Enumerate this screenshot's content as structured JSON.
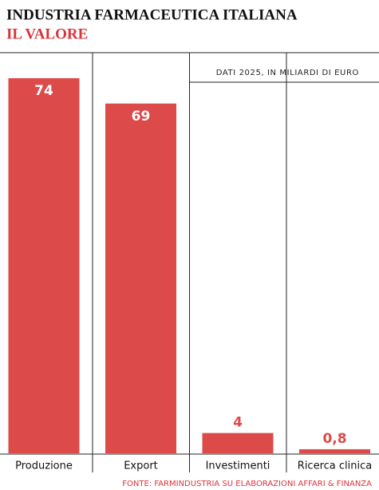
{
  "chart_data": {
    "type": "bar",
    "title": "INDUSTRIA FARMACEUTICA ITALIANA",
    "subtitle": "IL VALORE",
    "note": "DATI 2025, IN MILIARDI DI EURO",
    "source": "FONTE: FARMINDUSTRIA SU ELABORAZIONI AFFARI & FINANZA",
    "categories": [
      "Produzione",
      "Export",
      "Investimenti",
      "Ricerca clinica"
    ],
    "values": [
      74,
      69,
      4,
      0.8
    ],
    "value_labels": [
      "74",
      "69",
      "4",
      "0,8"
    ],
    "color": "#dc4a4a"
  }
}
